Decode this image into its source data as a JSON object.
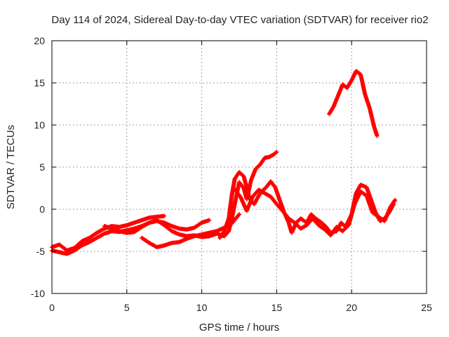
{
  "chart_data": {
    "type": "scatter",
    "title": "Day 114 of 2024, Sidereal Day-to-day VTEC variation (SDTVAR) for receiver rio2",
    "xlabel": "GPS time / hours",
    "ylabel": "SDTVAR / TECUs",
    "xlim": [
      0,
      25
    ],
    "ylim": [
      -10,
      20
    ],
    "xticks": [
      "0",
      "5",
      "10",
      "15",
      "20",
      "25"
    ],
    "yticks": [
      "-10",
      "-5",
      "0",
      "5",
      "10",
      "15",
      "20"
    ],
    "grid": true,
    "marker": "+",
    "color": "#ff0000",
    "series": [
      {
        "name": "track-a",
        "points": [
          [
            0,
            -4.5
          ],
          [
            0.5,
            -4.2
          ],
          [
            1,
            -4.9
          ],
          [
            1.5,
            -4.6
          ],
          [
            2,
            -3.8
          ],
          [
            2.5,
            -3.4
          ],
          [
            3,
            -2.8
          ],
          [
            3.5,
            -2.3
          ],
          [
            4,
            -2.0
          ],
          [
            4.5,
            -2.1
          ],
          [
            5,
            -1.9
          ],
          [
            5.5,
            -1.6
          ],
          [
            6,
            -1.3
          ],
          [
            6.5,
            -1.0
          ],
          [
            7,
            -0.9
          ],
          [
            7.5,
            -0.8
          ]
        ]
      },
      {
        "name": "track-b",
        "points": [
          [
            0,
            -4.9
          ],
          [
            0.5,
            -5.1
          ],
          [
            1,
            -5.3
          ],
          [
            1.5,
            -4.9
          ],
          [
            2,
            -4.3
          ],
          [
            2.5,
            -3.9
          ],
          [
            3,
            -3.4
          ],
          [
            3.5,
            -2.9
          ],
          [
            4,
            -2.6
          ],
          [
            4.5,
            -2.7
          ],
          [
            5,
            -2.5
          ],
          [
            5.5,
            -2.3
          ],
          [
            6,
            -2.0
          ],
          [
            6.5,
            -1.6
          ],
          [
            7,
            -1.4
          ],
          [
            7.5,
            -1.6
          ],
          [
            8,
            -2.0
          ],
          [
            8.5,
            -2.3
          ],
          [
            9,
            -2.4
          ],
          [
            9.5,
            -2.2
          ],
          [
            10,
            -1.6
          ],
          [
            10.5,
            -1.3
          ]
        ]
      },
      {
        "name": "track-c",
        "points": [
          [
            3.5,
            -2.0
          ],
          [
            4,
            -2.3
          ],
          [
            4.5,
            -2.6
          ],
          [
            5,
            -2.8
          ],
          [
            5.5,
            -2.7
          ],
          [
            6,
            -2.1
          ],
          [
            6.5,
            -1.6
          ],
          [
            7,
            -1.3
          ],
          [
            7.5,
            -1.9
          ],
          [
            8,
            -2.6
          ],
          [
            8.5,
            -3.0
          ],
          [
            9,
            -3.2
          ],
          [
            9.5,
            -3.1
          ],
          [
            10,
            -3.3
          ],
          [
            10.5,
            -3.2
          ],
          [
            11,
            -2.9
          ],
          [
            11.5,
            -3.2
          ],
          [
            11.8,
            -2.6
          ],
          [
            12.0,
            -1.2
          ],
          [
            12.3,
            1.5
          ],
          [
            12.5,
            3.2
          ],
          [
            12.8,
            2.5
          ],
          [
            13.0,
            1.2
          ],
          [
            13.3,
            3.5
          ],
          [
            13.6,
            4.8
          ],
          [
            13.9,
            5.3
          ],
          [
            14.2,
            6.1
          ],
          [
            14.5,
            6.2
          ],
          [
            14.8,
            6.5
          ],
          [
            15.0,
            6.8
          ]
        ]
      },
      {
        "name": "track-d",
        "points": [
          [
            11.2,
            -3.4
          ],
          [
            11.5,
            -2.6
          ],
          [
            11.8,
            -1.1
          ],
          [
            12.0,
            1.6
          ],
          [
            12.2,
            3.6
          ],
          [
            12.5,
            4.4
          ],
          [
            12.8,
            3.9
          ],
          [
            13.0,
            2.6
          ],
          [
            13.2,
            1.2
          ],
          [
            13.5,
            0.6
          ],
          [
            13.8,
            1.6
          ],
          [
            14.0,
            2.1
          ],
          [
            14.3,
            2.6
          ],
          [
            14.6,
            3.3
          ],
          [
            14.9,
            2.6
          ],
          [
            15.2,
            1.1
          ],
          [
            15.5,
            -0.4
          ],
          [
            15.8,
            -1.6
          ],
          [
            16.0,
            -2.8
          ],
          [
            16.3,
            -1.6
          ],
          [
            16.6,
            -1.1
          ],
          [
            17.0,
            -1.6
          ],
          [
            17.3,
            -0.6
          ],
          [
            17.6,
            -1.1
          ],
          [
            18.0,
            -1.6
          ],
          [
            18.3,
            -2.1
          ],
          [
            18.6,
            -2.8
          ],
          [
            19.0,
            -2.6
          ],
          [
            19.3,
            -1.6
          ],
          [
            19.6,
            -2.1
          ],
          [
            20.0,
            -0.6
          ],
          [
            20.3,
            1.9
          ],
          [
            20.6,
            2.9
          ],
          [
            21.0,
            2.6
          ],
          [
            21.3,
            1.1
          ],
          [
            21.6,
            -0.4
          ],
          [
            21.9,
            -1.4
          ],
          [
            22.2,
            -1.1
          ],
          [
            22.5,
            -0.4
          ],
          [
            22.8,
            0.6
          ]
        ]
      },
      {
        "name": "track-e",
        "points": [
          [
            12.2,
            2.4
          ],
          [
            12.6,
            1.4
          ],
          [
            13.0,
            -0.2
          ],
          [
            13.4,
            1.5
          ],
          [
            13.8,
            2.3
          ],
          [
            14.2,
            1.9
          ],
          [
            14.6,
            1.5
          ],
          [
            15.0,
            0.6
          ],
          [
            15.4,
            -0.2
          ],
          [
            15.8,
            -1.1
          ],
          [
            16.2,
            -1.6
          ],
          [
            16.6,
            -2.3
          ],
          [
            17.0,
            -1.9
          ],
          [
            17.4,
            -1.1
          ],
          [
            17.8,
            -1.9
          ],
          [
            18.2,
            -2.4
          ],
          [
            18.6,
            -3.1
          ],
          [
            19.0,
            -2.1
          ],
          [
            19.4,
            -2.6
          ],
          [
            19.8,
            -1.9
          ],
          [
            20.2,
            0.6
          ],
          [
            20.6,
            2.1
          ],
          [
            21.0,
            1.6
          ],
          [
            21.4,
            -0.4
          ],
          [
            21.8,
            -0.9
          ],
          [
            22.2,
            -1.4
          ],
          [
            22.6,
            0.3
          ],
          [
            22.9,
            1.1
          ]
        ]
      },
      {
        "name": "track-f",
        "points": [
          [
            6,
            -3.4
          ],
          [
            6.5,
            -4.0
          ],
          [
            7,
            -4.5
          ],
          [
            7.5,
            -4.3
          ],
          [
            8,
            -4.0
          ],
          [
            8.5,
            -3.9
          ],
          [
            9,
            -3.5
          ],
          [
            9.5,
            -3.2
          ],
          [
            10,
            -3.0
          ],
          [
            10.5,
            -2.8
          ],
          [
            11,
            -2.6
          ],
          [
            11.5,
            -2.2
          ],
          [
            12,
            -1.7
          ],
          [
            12.5,
            -0.6
          ]
        ]
      },
      {
        "name": "track-g",
        "points": [
          [
            18.5,
            11.3
          ],
          [
            18.8,
            12.2
          ],
          [
            19.1,
            13.5
          ],
          [
            19.4,
            14.8
          ],
          [
            19.7,
            14.4
          ],
          [
            20.0,
            15.3
          ],
          [
            20.3,
            16.4
          ],
          [
            20.6,
            16.0
          ],
          [
            20.9,
            13.6
          ],
          [
            21.2,
            12.0
          ],
          [
            21.5,
            9.8
          ],
          [
            21.7,
            8.7
          ]
        ]
      }
    ]
  }
}
